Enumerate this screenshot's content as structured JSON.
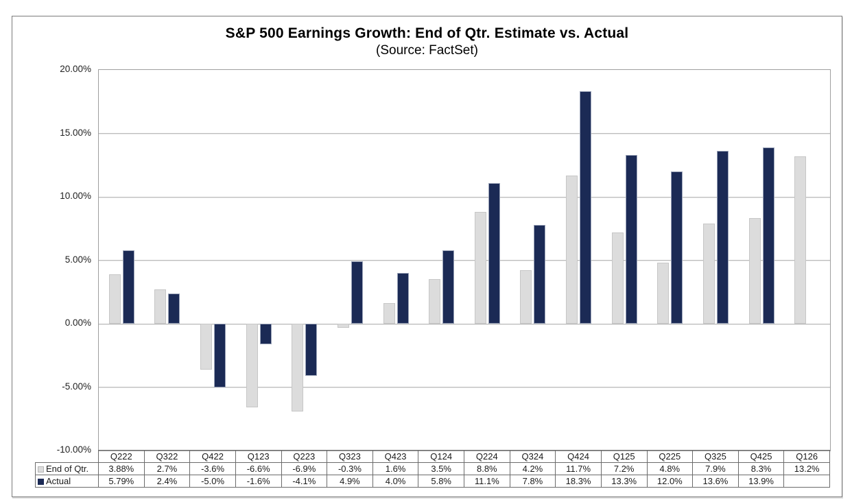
{
  "figure": {
    "title": "S&P 500 Earnings Growth: End of Qtr. Estimate vs. Actual",
    "subtitle": "(Source: FactSet)"
  },
  "chart_data": {
    "type": "bar",
    "title": "S&P 500 Earnings Growth: End of Qtr. Estimate vs. Actual",
    "subtitle": "(Source: FactSet)",
    "categories": [
      "Q222",
      "Q322",
      "Q422",
      "Q123",
      "Q223",
      "Q323",
      "Q423",
      "Q124",
      "Q224",
      "Q324",
      "Q424",
      "Q125",
      "Q225",
      "Q325",
      "Q425",
      "Q126"
    ],
    "series": [
      {
        "name": "End of Qtr.",
        "color": "#dcdcdc",
        "values": [
          3.88,
          2.7,
          -3.6,
          -6.6,
          -6.9,
          -0.3,
          1.6,
          3.5,
          8.8,
          4.2,
          11.7,
          7.2,
          4.8,
          7.9,
          8.3,
          13.2
        ]
      },
      {
        "name": "Actual",
        "color": "#1b2a55",
        "values": [
          5.79,
          2.4,
          -5.0,
          -1.6,
          -4.1,
          4.9,
          4.0,
          5.8,
          11.1,
          7.8,
          18.3,
          13.3,
          12.0,
          13.6,
          13.9,
          null
        ]
      }
    ],
    "xlabel": "",
    "ylabel": "",
    "ylim": [
      -10,
      20
    ],
    "yticks": [
      20,
      15,
      10,
      5,
      0,
      -5,
      -10
    ],
    "ytick_labels": [
      "20.00%",
      "15.00%",
      "10.00%",
      "5.00%",
      "0.00%",
      "-5.00%",
      "-10.00%"
    ],
    "grid": true,
    "legend_position": "table-row-headers"
  },
  "table": {
    "corner": "",
    "columns": [
      "Q222",
      "Q322",
      "Q422",
      "Q123",
      "Q223",
      "Q323",
      "Q423",
      "Q124",
      "Q224",
      "Q324",
      "Q424",
      "Q125",
      "Q225",
      "Q325",
      "Q425",
      "Q126"
    ],
    "rows": [
      {
        "label": "End of Qtr.",
        "marker_color": "#dcdcdc",
        "marker_border": "#b5b5b5",
        "cells": [
          "3.88%",
          "2.7%",
          "-3.6%",
          "-6.6%",
          "-6.9%",
          "-0.3%",
          "1.6%",
          "3.5%",
          "8.8%",
          "4.2%",
          "11.7%",
          "7.2%",
          "4.8%",
          "7.9%",
          "8.3%",
          "13.2%"
        ]
      },
      {
        "label": "Actual",
        "marker_color": "#1b2a55",
        "marker_border": "#1b2a55",
        "cells": [
          "5.79%",
          "2.4%",
          "-5.0%",
          "-1.6%",
          "-4.1%",
          "4.9%",
          "4.0%",
          "5.8%",
          "11.1%",
          "7.8%",
          "18.3%",
          "13.3%",
          "12.0%",
          "13.6%",
          "13.9%",
          ""
        ]
      }
    ]
  }
}
